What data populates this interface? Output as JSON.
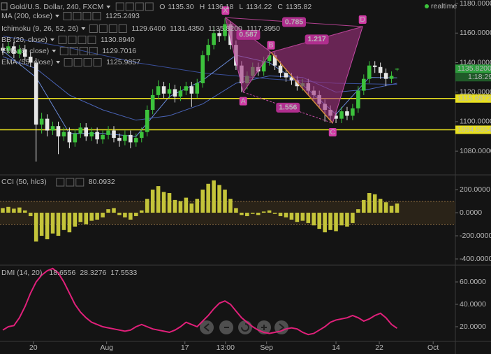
{
  "chart_data": [
    {
      "type": "candlestick",
      "title": "Gold/U.S. Dollar, 240, FXCM",
      "quote": [
        {
          "name": "O",
          "value": "1135.30"
        },
        {
          "name": "H",
          "value": "1136.18"
        },
        {
          "name": "L",
          "value": "1134.22"
        },
        {
          "name": "C",
          "value": "1135.82"
        }
      ],
      "status": "realtime",
      "indicators": [
        {
          "name": "MA (200, close)",
          "values": [
            "1125.2493"
          ],
          "colors": [
            "#5a78c8"
          ],
          "line": {
            "color": "#3a4f9a",
            "x": [
              0,
              12,
              24,
              36,
              48,
              60,
              71
            ],
            "values": [
              1158,
              1150,
              1140,
              1133,
              1129,
              1126,
              1125.2493
            ]
          }
        },
        {
          "name": "Ichimoku (9, 26, 52, 26)",
          "values": [
            "1129.6400",
            "1131.4350",
            "1135.8200",
            "1117.3950"
          ],
          "colors": [
            "#4a7bd4",
            "#c04040",
            "#3aa03a",
            "#c04040"
          ]
        },
        {
          "name": "BB (20, close)",
          "values": [
            "1130.8940"
          ],
          "colors": [
            "#5a78c8"
          ]
        },
        {
          "name": "EMA (8, close)",
          "values": [
            "1129.7016"
          ],
          "colors": [
            "#5a78c8"
          ],
          "line": {
            "color": "#6a8ad8",
            "x": [
              0,
              6,
              12,
              18,
              24,
              30,
              36,
              42,
              48,
              54,
              60,
              66,
              71
            ],
            "values": [
              1148,
              1130,
              1092,
              1092,
              1090,
              1117,
              1128,
              1145,
              1140,
              1125,
              1105,
              1130,
              1129.7016
            ]
          }
        },
        {
          "name": "EMA (55, close)",
          "values": [
            "1125.9857"
          ],
          "colors": [
            "#5a78c8"
          ],
          "line": {
            "color": "#4a64b8",
            "x": [
              0,
              6,
              12,
              18,
              24,
              30,
              36,
              42,
              48,
              54,
              60,
              66,
              71
            ],
            "values": [
              1144,
              1136,
              1118,
              1108,
              1101,
              1104,
              1112,
              1126,
              1131,
              1130,
              1120,
              1122,
              1125.9857
            ]
          }
        }
      ],
      "open": [
        1150,
        1148,
        1151,
        1146,
        1149,
        1144,
        1140,
        1098,
        1102,
        1094,
        1097,
        1090,
        1093,
        1086,
        1092,
        1096,
        1090,
        1093,
        1088,
        1091,
        1094,
        1089,
        1087,
        1091,
        1086,
        1089,
        1093,
        1108,
        1118,
        1124,
        1119,
        1122,
        1117,
        1121,
        1124,
        1119,
        1126,
        1145,
        1152,
        1160,
        1158,
        1166,
        1152,
        1138,
        1126,
        1131,
        1137,
        1134,
        1141,
        1145,
        1138,
        1133,
        1130,
        1128,
        1124,
        1126,
        1121,
        1118,
        1112,
        1108,
        1104,
        1102,
        1107,
        1104,
        1109,
        1121,
        1129,
        1138,
        1137,
        1133,
        1129,
        1135.3
      ],
      "high": [
        1153,
        1154,
        1154,
        1152,
        1152,
        1147,
        1143,
        1106,
        1105,
        1100,
        1100,
        1096,
        1096,
        1095,
        1099,
        1099,
        1096,
        1096,
        1094,
        1097,
        1097,
        1092,
        1094,
        1094,
        1092,
        1096,
        1111,
        1122,
        1128,
        1127,
        1126,
        1125,
        1124,
        1127,
        1127,
        1129,
        1148,
        1156,
        1164,
        1163,
        1170,
        1168,
        1155,
        1141,
        1134,
        1140,
        1140,
        1144,
        1148,
        1147,
        1141,
        1136,
        1133,
        1131,
        1129,
        1129,
        1124,
        1121,
        1115,
        1111,
        1107,
        1110,
        1110,
        1112,
        1124,
        1132,
        1141,
        1141,
        1140,
        1136,
        1134,
        1136.18
      ],
      "low": [
        1145,
        1146,
        1143,
        1143,
        1141,
        1137,
        1073,
        1092,
        1090,
        1091,
        1078,
        1087,
        1082,
        1083,
        1089,
        1087,
        1087,
        1085,
        1085,
        1088,
        1086,
        1083,
        1084,
        1082,
        1083,
        1086,
        1090,
        1105,
        1115,
        1116,
        1116,
        1113,
        1114,
        1118,
        1110,
        1116,
        1123,
        1141,
        1149,
        1154,
        1155,
        1149,
        1135,
        1120,
        1122,
        1128,
        1131,
        1131,
        1138,
        1135,
        1130,
        1127,
        1125,
        1121,
        1121,
        1118,
        1115,
        1109,
        1100,
        1101,
        1099,
        1099,
        1101,
        1101,
        1106,
        1118,
        1126,
        1133,
        1129,
        1124,
        1126,
        1134.22
      ],
      "close": [
        1148,
        1151,
        1146,
        1149,
        1144,
        1140,
        1098,
        1102,
        1094,
        1097,
        1090,
        1093,
        1086,
        1092,
        1096,
        1090,
        1093,
        1088,
        1091,
        1094,
        1089,
        1087,
        1091,
        1086,
        1089,
        1093,
        1108,
        1118,
        1124,
        1119,
        1122,
        1117,
        1121,
        1124,
        1119,
        1126,
        1145,
        1152,
        1160,
        1158,
        1166,
        1152,
        1138,
        1126,
        1131,
        1137,
        1134,
        1141,
        1145,
        1138,
        1133,
        1130,
        1128,
        1124,
        1126,
        1121,
        1118,
        1112,
        1108,
        1104,
        1102,
        1107,
        1104,
        1109,
        1121,
        1129,
        1138,
        1137,
        1133,
        1129,
        1131,
        1135.82
      ],
      "up_color": "#3cc23c",
      "down_color": "#e6e6e6",
      "xlim": [
        -0.5,
        81.5
      ],
      "xticks": [
        {
          "value": 5.5,
          "label": "20"
        },
        {
          "value": 18.7,
          "label": "Aug"
        },
        {
          "value": 32.8,
          "label": "17"
        },
        {
          "value": 40.1,
          "label": "13:00"
        },
        {
          "value": 47.5,
          "label": "Sep"
        },
        {
          "value": 60,
          "label": "14"
        },
        {
          "value": 67.8,
          "label": "22"
        },
        {
          "value": 77.5,
          "label": "Oct"
        }
      ],
      "ylim": [
        1066.3,
        1182.4
      ],
      "yticks": [
        {
          "value": 1180,
          "label": "1180.0000"
        },
        {
          "value": 1160,
          "label": "1160.0000"
        },
        {
          "value": 1140,
          "label": "1140.0000"
        },
        {
          "value": 1120,
          "label": "1120.0000"
        },
        {
          "value": 1100,
          "label": "1100.0000"
        },
        {
          "value": 1080,
          "label": "1080.0000"
        }
      ],
      "last_price": {
        "value": 1135.82,
        "label": "1135.8200",
        "color": "#2e9e3e"
      },
      "countdown": "1:18:29",
      "levels": [
        1115.6872,
        1094.5054
      ],
      "level_color": "#e8e020",
      "pattern": {
        "color": "#a0307f",
        "points": [
          {
            "label": "X",
            "x": 40.1,
            "y": 1170.5
          },
          {
            "label": "A",
            "x": 43.3,
            "y": 1120
          },
          {
            "label": "B",
            "x": 48.3,
            "y": 1147
          },
          {
            "label": "C",
            "x": 59.4,
            "y": 1099
          },
          {
            "label": "D",
            "x": 64.8,
            "y": 1164.4
          }
        ],
        "ratios": [
          {
            "value": "0.587",
            "between": [
              "X",
              "B"
            ]
          },
          {
            "value": "0.785",
            "between": [
              "X",
              "D"
            ]
          },
          {
            "value": "1.217",
            "between": [
              "B",
              "D"
            ]
          },
          {
            "value": "1.556",
            "between": [
              "A",
              "C"
            ]
          }
        ]
      }
    },
    {
      "type": "bar",
      "title": "CCI (50, hlc3)",
      "header_value": "80.0932",
      "values": [
        40,
        50,
        35,
        45,
        20,
        -30,
        -250,
        -200,
        -230,
        -180,
        -200,
        -150,
        -170,
        -120,
        -80,
        -100,
        -70,
        -60,
        -40,
        30,
        40,
        -20,
        -40,
        -60,
        -30,
        20,
        120,
        200,
        230,
        180,
        170,
        110,
        100,
        130,
        80,
        120,
        200,
        250,
        280,
        240,
        200,
        120,
        40,
        -20,
        -30,
        -10,
        -20,
        10,
        20,
        -10,
        -30,
        -40,
        -60,
        -80,
        -70,
        -90,
        -110,
        -140,
        -170,
        -150,
        -160,
        -110,
        -120,
        -90,
        30,
        110,
        170,
        160,
        120,
        90,
        60,
        80.0932
      ],
      "color": "#c4c43a",
      "bands": [
        -100,
        100
      ],
      "ylim": [
        -448,
        297
      ],
      "yticks": [
        {
          "value": 200,
          "label": "200.0000"
        },
        {
          "value": 0,
          "label": "0.0000"
        },
        {
          "value": -200,
          "label": "-200.0000"
        },
        {
          "value": -400,
          "label": "-400.0000"
        }
      ]
    },
    {
      "type": "line",
      "title": "DMI (14, 20)",
      "header_values": [
        "18.6556",
        "28.3276",
        "17.5533"
      ],
      "header_colors": [
        "#e0207a",
        "#4a7bd4",
        "#e07a30"
      ],
      "series": [
        {
          "color": "#e0207a",
          "values": [
            17,
            20,
            21,
            28,
            38,
            50,
            60,
            66,
            70,
            72,
            68,
            60,
            50,
            40,
            33,
            28,
            24,
            22,
            20,
            19,
            18,
            17,
            16,
            17,
            20,
            22,
            20,
            18,
            17,
            16,
            15,
            17,
            20,
            24,
            22,
            20,
            25,
            30,
            36,
            41,
            43,
            40,
            34,
            28,
            24,
            20,
            17,
            15,
            14,
            15,
            16,
            18,
            19,
            18,
            15,
            13,
            14,
            17,
            20,
            24,
            26,
            27,
            28,
            30,
            28,
            25,
            27,
            30,
            32,
            28,
            22,
            18.6556
          ]
        }
      ],
      "ylim": [
        7.5,
        73.75
      ],
      "yticks": [
        {
          "value": 60,
          "label": "60.0000"
        },
        {
          "value": 40,
          "label": "40.0000"
        },
        {
          "value": 20,
          "label": "20.0000"
        }
      ]
    }
  ]
}
